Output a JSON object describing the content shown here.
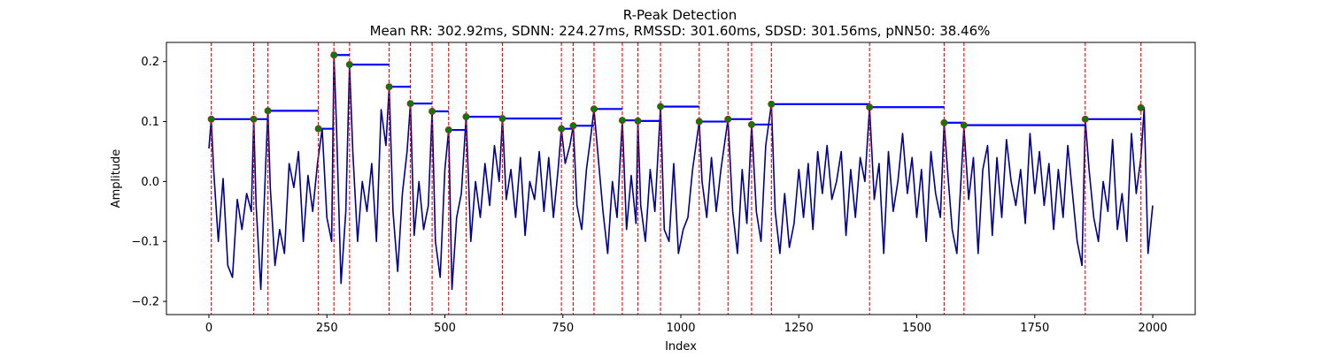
{
  "chart_data": {
    "type": "line",
    "title": "R-Peak Detection",
    "subtitle": "Mean RR: 302.92ms, SDNN: 224.27ms, RMSSD: 301.60ms, SDSD: 301.56ms, pNN50: 38.46%",
    "xlabel": "Index",
    "ylabel": "Amplitude",
    "xlim": [
      -90,
      2090
    ],
    "ylim": [
      -0.222,
      0.232
    ],
    "xticks": [
      0,
      250,
      500,
      750,
      1000,
      1250,
      1500,
      1750,
      2000
    ],
    "yticks": [
      -0.2,
      -0.1,
      0.0,
      0.1,
      0.2
    ],
    "xtick_labels": [
      "0",
      "250",
      "500",
      "750",
      "1000",
      "1250",
      "1500",
      "1750",
      "2000"
    ],
    "ytick_labels": [
      "−0.2",
      "−0.1",
      "0.0",
      "0.1",
      "0.2"
    ],
    "grid": false,
    "colors": {
      "signal": "#00008b",
      "peak_line": "#ff0000",
      "peak_marker": "#008000",
      "rr_interval": "#0000ff"
    },
    "signal": {
      "x": [
        0,
        5,
        10,
        20,
        30,
        40,
        50,
        60,
        70,
        80,
        90,
        95,
        100,
        110,
        120,
        125,
        130,
        140,
        150,
        160,
        170,
        180,
        190,
        200,
        210,
        220,
        230,
        240,
        250,
        260,
        265,
        270,
        280,
        290,
        298,
        305,
        315,
        325,
        335,
        345,
        355,
        365,
        375,
        382,
        390,
        400,
        410,
        420,
        427,
        435,
        445,
        455,
        465,
        473,
        480,
        490,
        500,
        508,
        515,
        525,
        535,
        545,
        555,
        565,
        575,
        585,
        595,
        605,
        615,
        622,
        630,
        640,
        650,
        660,
        670,
        680,
        690,
        700,
        710,
        720,
        730,
        740,
        747,
        755,
        765,
        772,
        780,
        790,
        800,
        810,
        816,
        825,
        835,
        845,
        855,
        865,
        876,
        885,
        895,
        905,
        909,
        915,
        925,
        935,
        945,
        957,
        965,
        975,
        985,
        995,
        1005,
        1015,
        1025,
        1039,
        1045,
        1055,
        1065,
        1075,
        1085,
        1100,
        1110,
        1120,
        1130,
        1140,
        1150,
        1160,
        1170,
        1180,
        1192,
        1200,
        1210,
        1220,
        1230,
        1240,
        1250,
        1260,
        1270,
        1280,
        1290,
        1300,
        1310,
        1320,
        1330,
        1340,
        1350,
        1360,
        1370,
        1380,
        1390,
        1400,
        1410,
        1420,
        1430,
        1440,
        1450,
        1460,
        1470,
        1480,
        1490,
        1500,
        1510,
        1520,
        1530,
        1540,
        1550,
        1558,
        1565,
        1575,
        1585,
        1600,
        1610,
        1620,
        1630,
        1640,
        1650,
        1660,
        1670,
        1680,
        1690,
        1700,
        1710,
        1720,
        1730,
        1740,
        1750,
        1760,
        1770,
        1780,
        1790,
        1800,
        1810,
        1820,
        1830,
        1840,
        1850,
        1857,
        1865,
        1875,
        1885,
        1895,
        1905,
        1915,
        1925,
        1935,
        1945,
        1955,
        1965,
        1975,
        1982,
        1990,
        2000
      ],
      "y": [
        0.055,
        0.104,
        0.02,
        -0.1,
        0.005,
        -0.14,
        -0.16,
        -0.03,
        -0.08,
        -0.02,
        -0.05,
        0.104,
        -0.04,
        -0.18,
        0.02,
        0.118,
        -0.01,
        -0.14,
        -0.08,
        -0.12,
        0.03,
        -0.01,
        0.05,
        -0.1,
        0.01,
        -0.05,
        0.03,
        0.088,
        -0.06,
        -0.1,
        0.211,
        0.1,
        -0.17,
        -0.05,
        0.195,
        0.05,
        -0.1,
        0.0,
        -0.05,
        0.03,
        -0.1,
        0.12,
        0.06,
        0.158,
        -0.05,
        -0.15,
        -0.02,
        0.05,
        0.13,
        -0.09,
        0.0,
        -0.08,
        -0.04,
        0.117,
        -0.1,
        -0.16,
        0.02,
        0.086,
        -0.18,
        -0.06,
        -0.02,
        0.108,
        -0.1,
        0.0,
        -0.06,
        0.03,
        -0.04,
        0.06,
        0.0,
        0.105,
        -0.03,
        0.02,
        -0.06,
        0.04,
        -0.09,
        0.0,
        -0.03,
        0.05,
        -0.05,
        0.04,
        -0.06,
        0.02,
        0.088,
        0.03,
        0.06,
        0.093,
        -0.04,
        -0.08,
        0.02,
        0.08,
        0.121,
        0.04,
        -0.05,
        -0.12,
        0.0,
        -0.06,
        0.102,
        -0.08,
        0.01,
        -0.07,
        0.101,
        -0.04,
        -0.1,
        0.02,
        -0.05,
        0.125,
        -0.08,
        -0.1,
        0.03,
        -0.12,
        -0.08,
        -0.06,
        0.02,
        0.1,
        0.0,
        -0.06,
        0.04,
        -0.05,
        0.02,
        0.104,
        -0.05,
        -0.12,
        0.02,
        -0.07,
        0.095,
        -0.05,
        -0.1,
        0.06,
        0.129,
        -0.05,
        -0.12,
        -0.02,
        -0.11,
        -0.07,
        0.02,
        -0.06,
        0.03,
        -0.08,
        0.05,
        -0.02,
        0.06,
        -0.03,
        0.0,
        0.05,
        -0.09,
        0.02,
        -0.06,
        0.04,
        0.0,
        0.124,
        -0.03,
        0.03,
        -0.12,
        0.05,
        -0.05,
        0.0,
        0.08,
        -0.02,
        0.04,
        -0.06,
        0.02,
        -0.1,
        0.05,
        -0.02,
        -0.06,
        0.098,
        0.02,
        -0.08,
        -0.12,
        0.09,
        -0.03,
        0.04,
        -0.12,
        0.02,
        0.06,
        -0.09,
        0.04,
        -0.06,
        0.07,
        0.0,
        -0.04,
        0.02,
        -0.07,
        0.08,
        -0.02,
        0.05,
        -0.04,
        0.03,
        -0.08,
        0.02,
        -0.06,
        0.06,
        -0.02,
        -0.1,
        -0.14,
        0.104,
        0.02,
        -0.06,
        -0.1,
        0.0,
        -0.05,
        0.07,
        -0.08,
        -0.02,
        -0.1,
        0.08,
        -0.02,
        0.04,
        0.123,
        -0.12,
        -0.04
      ]
    },
    "peaks": [
      {
        "x": 5,
        "y": 0.104
      },
      {
        "x": 95,
        "y": 0.104
      },
      {
        "x": 125,
        "y": 0.118
      },
      {
        "x": 232,
        "y": 0.088
      },
      {
        "x": 265,
        "y": 0.211
      },
      {
        "x": 298,
        "y": 0.195
      },
      {
        "x": 382,
        "y": 0.158
      },
      {
        "x": 427,
        "y": 0.13
      },
      {
        "x": 473,
        "y": 0.117
      },
      {
        "x": 508,
        "y": 0.086
      },
      {
        "x": 545,
        "y": 0.108
      },
      {
        "x": 622,
        "y": 0.105
      },
      {
        "x": 747,
        "y": 0.088
      },
      {
        "x": 772,
        "y": 0.093
      },
      {
        "x": 816,
        "y": 0.121
      },
      {
        "x": 876,
        "y": 0.102
      },
      {
        "x": 909,
        "y": 0.101
      },
      {
        "x": 957,
        "y": 0.125
      },
      {
        "x": 1039,
        "y": 0.1
      },
      {
        "x": 1100,
        "y": 0.104
      },
      {
        "x": 1150,
        "y": 0.095
      },
      {
        "x": 1192,
        "y": 0.129
      },
      {
        "x": 1400,
        "y": 0.124
      },
      {
        "x": 1558,
        "y": 0.098
      },
      {
        "x": 1600,
        "y": 0.094
      },
      {
        "x": 1857,
        "y": 0.104
      },
      {
        "x": 1975,
        "y": 0.123
      }
    ]
  }
}
